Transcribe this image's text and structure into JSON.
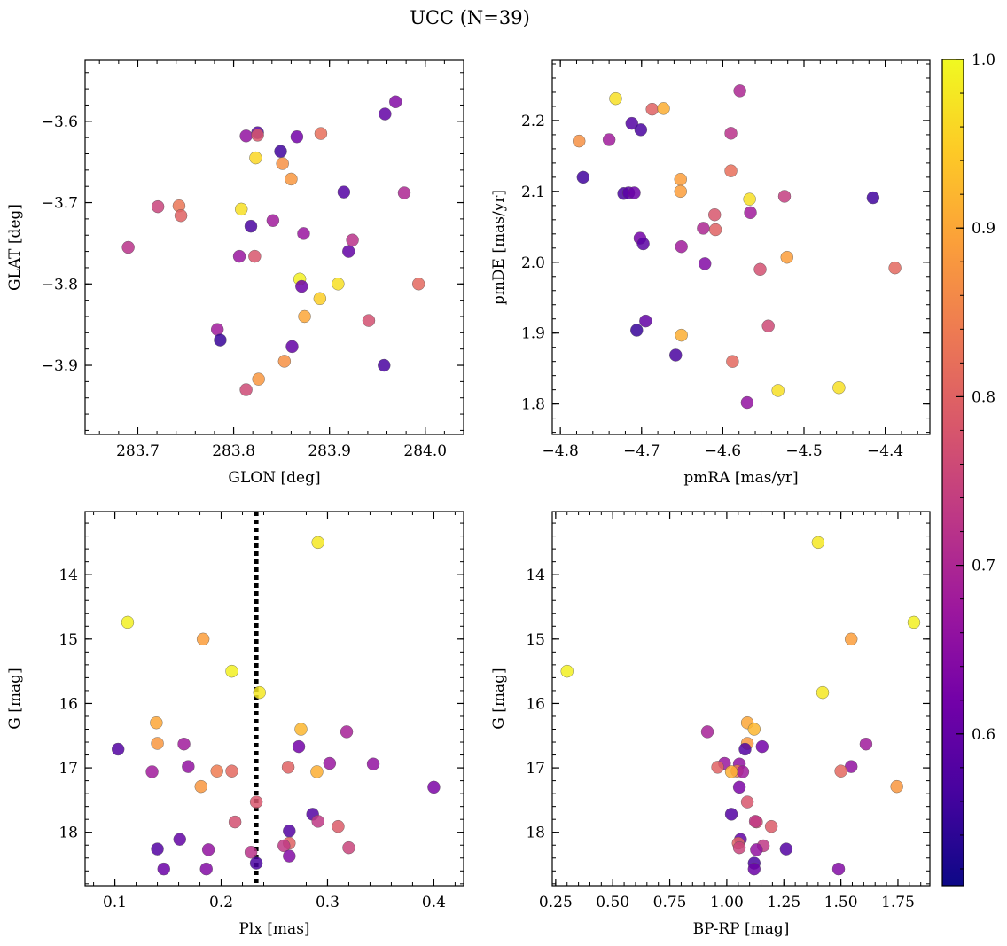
{
  "figure": {
    "title": "UCC (N=39)",
    "colormap": [
      "#0d0887",
      "#46039f",
      "#7201a8",
      "#9c179e",
      "#bd3786",
      "#d8576b",
      "#ed7953",
      "#fb9f3a",
      "#fdca26",
      "#f0f921"
    ],
    "colorbar": {
      "range": [
        0.51,
        1.0
      ],
      "ticks": [
        "0.6",
        "0.7",
        "0.8",
        "0.9",
        "1.0"
      ]
    }
  },
  "chart_data": [
    {
      "type": "scatter",
      "xlabel": "GLON [deg]",
      "ylabel": "GLAT [deg]",
      "xlim": [
        283.645,
        284.04
      ],
      "ylim": [
        -3.985,
        -3.525
      ],
      "xticks": [
        "283.7",
        "283.8",
        "283.9",
        "284.0"
      ],
      "yticks": [
        "-3.6",
        "-3.7",
        "-3.8",
        "-3.9"
      ],
      "points": [
        {
          "x": 283.69,
          "y": -3.755,
          "c": 0.72
        },
        {
          "x": 283.721,
          "y": -3.705,
          "c": 0.75
        },
        {
          "x": 283.743,
          "y": -3.704,
          "c": 0.83
        },
        {
          "x": 283.745,
          "y": -3.716,
          "c": 0.8
        },
        {
          "x": 283.783,
          "y": -3.856,
          "c": 0.68
        },
        {
          "x": 283.786,
          "y": -3.869,
          "c": 0.55
        },
        {
          "x": 283.806,
          "y": -3.766,
          "c": 0.67
        },
        {
          "x": 283.808,
          "y": -3.708,
          "c": 0.97
        },
        {
          "x": 283.813,
          "y": -3.618,
          "c": 0.66
        },
        {
          "x": 283.813,
          "y": -3.93,
          "c": 0.76
        },
        {
          "x": 283.818,
          "y": -3.729,
          "c": 0.57
        },
        {
          "x": 283.822,
          "y": -3.766,
          "c": 0.78
        },
        {
          "x": 283.823,
          "y": -3.645,
          "c": 0.96
        },
        {
          "x": 283.825,
          "y": -3.614,
          "c": 0.58
        },
        {
          "x": 283.825,
          "y": -3.617,
          "c": 0.78
        },
        {
          "x": 283.826,
          "y": -3.917,
          "c": 0.88
        },
        {
          "x": 283.841,
          "y": -3.722,
          "c": 0.68
        },
        {
          "x": 283.849,
          "y": -3.637,
          "c": 0.56
        },
        {
          "x": 283.851,
          "y": -3.652,
          "c": 0.87
        },
        {
          "x": 283.853,
          "y": -3.895,
          "c": 0.87
        },
        {
          "x": 283.86,
          "y": -3.671,
          "c": 0.88
        },
        {
          "x": 283.861,
          "y": -3.877,
          "c": 0.6
        },
        {
          "x": 283.866,
          "y": -3.619,
          "c": 0.62
        },
        {
          "x": 283.869,
          "y": -3.794,
          "c": 0.99
        },
        {
          "x": 283.871,
          "y": -3.803,
          "c": 0.61
        },
        {
          "x": 283.873,
          "y": -3.738,
          "c": 0.67
        },
        {
          "x": 283.874,
          "y": -3.84,
          "c": 0.9
        },
        {
          "x": 283.89,
          "y": -3.818,
          "c": 0.95
        },
        {
          "x": 283.891,
          "y": -3.615,
          "c": 0.82
        },
        {
          "x": 283.909,
          "y": -3.8,
          "c": 0.97
        },
        {
          "x": 283.915,
          "y": -3.687,
          "c": 0.58
        },
        {
          "x": 283.92,
          "y": -3.76,
          "c": 0.6
        },
        {
          "x": 283.924,
          "y": -3.746,
          "c": 0.72
        },
        {
          "x": 283.941,
          "y": -3.845,
          "c": 0.77
        },
        {
          "x": 283.957,
          "y": -3.9,
          "c": 0.57
        },
        {
          "x": 283.958,
          "y": -3.591,
          "c": 0.6
        },
        {
          "x": 283.969,
          "y": -3.576,
          "c": 0.64
        },
        {
          "x": 283.978,
          "y": -3.688,
          "c": 0.7
        },
        {
          "x": 283.993,
          "y": -3.8,
          "c": 0.81
        }
      ]
    },
    {
      "type": "scatter",
      "xlabel": "pmRA [mas/yr]",
      "ylabel": "pmDE [mas/yr]",
      "xlim": [
        -4.81,
        -4.345
      ],
      "ylim": [
        1.757,
        2.285
      ],
      "xticks": [
        "-4.8",
        "-4.7",
        "-4.6",
        "-4.5",
        "-4.4"
      ],
      "yticks": [
        "1.8",
        "1.9",
        "2.0",
        "2.1",
        "2.2"
      ],
      "points": [
        {
          "x": -4.777,
          "y": 2.171,
          "c": 0.87
        },
        {
          "x": -4.772,
          "y": 2.12,
          "c": 0.56
        },
        {
          "x": -4.74,
          "y": 2.173,
          "c": 0.68
        },
        {
          "x": -4.732,
          "y": 2.231,
          "c": 0.97
        },
        {
          "x": -4.722,
          "y": 2.097,
          "c": 0.57
        },
        {
          "x": -4.716,
          "y": 2.098,
          "c": 0.59
        },
        {
          "x": -4.712,
          "y": 2.196,
          "c": 0.58
        },
        {
          "x": -4.709,
          "y": 2.098,
          "c": 0.61
        },
        {
          "x": -4.706,
          "y": 1.904,
          "c": 0.55
        },
        {
          "x": -4.702,
          "y": 2.034,
          "c": 0.62
        },
        {
          "x": -4.701,
          "y": 2.187,
          "c": 0.57
        },
        {
          "x": -4.698,
          "y": 2.026,
          "c": 0.59
        },
        {
          "x": -4.695,
          "y": 1.917,
          "c": 0.6
        },
        {
          "x": -4.687,
          "y": 2.216,
          "c": 0.8
        },
        {
          "x": -4.673,
          "y": 2.217,
          "c": 0.91
        },
        {
          "x": -4.658,
          "y": 1.869,
          "c": 0.57
        },
        {
          "x": -4.652,
          "y": 2.117,
          "c": 0.89
        },
        {
          "x": -4.652,
          "y": 2.1,
          "c": 0.89
        },
        {
          "x": -4.651,
          "y": 2.022,
          "c": 0.68
        },
        {
          "x": -4.651,
          "y": 1.897,
          "c": 0.91
        },
        {
          "x": -4.624,
          "y": 2.048,
          "c": 0.7
        },
        {
          "x": -4.622,
          "y": 1.998,
          "c": 0.64
        },
        {
          "x": -4.61,
          "y": 2.067,
          "c": 0.78
        },
        {
          "x": -4.609,
          "y": 2.046,
          "c": 0.8
        },
        {
          "x": -4.59,
          "y": 2.182,
          "c": 0.72
        },
        {
          "x": -4.59,
          "y": 2.129,
          "c": 0.82
        },
        {
          "x": -4.588,
          "y": 1.86,
          "c": 0.81
        },
        {
          "x": -4.579,
          "y": 2.242,
          "c": 0.7
        },
        {
          "x": -4.57,
          "y": 1.802,
          "c": 0.66
        },
        {
          "x": -4.567,
          "y": 2.089,
          "c": 0.97
        },
        {
          "x": -4.566,
          "y": 2.07,
          "c": 0.68
        },
        {
          "x": -4.554,
          "y": 1.99,
          "c": 0.77
        },
        {
          "x": -4.544,
          "y": 1.91,
          "c": 0.76
        },
        {
          "x": -4.532,
          "y": 1.819,
          "c": 0.97
        },
        {
          "x": -4.524,
          "y": 2.093,
          "c": 0.74
        },
        {
          "x": -4.521,
          "y": 2.007,
          "c": 0.89
        },
        {
          "x": -4.457,
          "y": 1.823,
          "c": 0.97
        },
        {
          "x": -4.415,
          "y": 2.091,
          "c": 0.56
        },
        {
          "x": -4.388,
          "y": 1.992,
          "c": 0.81
        }
      ]
    },
    {
      "type": "scatter",
      "xlabel": "Plx [mas]",
      "ylabel": "G [mag]",
      "xlim": [
        0.072,
        0.428
      ],
      "ylim": [
        18.83,
        13.02
      ],
      "y_inverted": true,
      "xticks": [
        "0.1",
        "0.2",
        "0.3",
        "0.4"
      ],
      "yticks": [
        "14",
        "15",
        "16",
        "17",
        "18"
      ],
      "vline": {
        "x": 0.233,
        "style": "dotted"
      },
      "points": [
        {
          "x": 0.291,
          "y": 13.5,
          "c": 0.98
        },
        {
          "x": 0.112,
          "y": 14.74,
          "c": 0.99
        },
        {
          "x": 0.183,
          "y": 15.0,
          "c": 0.89
        },
        {
          "x": 0.21,
          "y": 15.5,
          "c": 0.99
        },
        {
          "x": 0.236,
          "y": 15.83,
          "c": 0.98
        },
        {
          "x": 0.139,
          "y": 16.3,
          "c": 0.9
        },
        {
          "x": 0.275,
          "y": 16.4,
          "c": 0.92
        },
        {
          "x": 0.318,
          "y": 16.44,
          "c": 0.69
        },
        {
          "x": 0.14,
          "y": 16.62,
          "c": 0.88
        },
        {
          "x": 0.165,
          "y": 16.63,
          "c": 0.68
        },
        {
          "x": 0.273,
          "y": 16.67,
          "c": 0.62
        },
        {
          "x": 0.103,
          "y": 16.71,
          "c": 0.58
        },
        {
          "x": 0.302,
          "y": 16.93,
          "c": 0.67
        },
        {
          "x": 0.343,
          "y": 16.94,
          "c": 0.66
        },
        {
          "x": 0.169,
          "y": 16.98,
          "c": 0.66
        },
        {
          "x": 0.263,
          "y": 16.99,
          "c": 0.8
        },
        {
          "x": 0.196,
          "y": 17.05,
          "c": 0.84
        },
        {
          "x": 0.21,
          "y": 17.05,
          "c": 0.81
        },
        {
          "x": 0.135,
          "y": 17.06,
          "c": 0.68
        },
        {
          "x": 0.29,
          "y": 17.06,
          "c": 0.91
        },
        {
          "x": 0.181,
          "y": 17.29,
          "c": 0.88
        },
        {
          "x": 0.4,
          "y": 17.3,
          "c": 0.63
        },
        {
          "x": 0.233,
          "y": 17.53,
          "c": 0.78
        },
        {
          "x": 0.286,
          "y": 17.72,
          "c": 0.58
        },
        {
          "x": 0.213,
          "y": 17.84,
          "c": 0.77
        },
        {
          "x": 0.291,
          "y": 17.83,
          "c": 0.73
        },
        {
          "x": 0.31,
          "y": 17.91,
          "c": 0.79
        },
        {
          "x": 0.264,
          "y": 17.98,
          "c": 0.58
        },
        {
          "x": 0.161,
          "y": 18.11,
          "c": 0.6
        },
        {
          "x": 0.264,
          "y": 18.17,
          "c": 0.8
        },
        {
          "x": 0.259,
          "y": 18.21,
          "c": 0.73
        },
        {
          "x": 0.32,
          "y": 18.24,
          "c": 0.75
        },
        {
          "x": 0.14,
          "y": 18.26,
          "c": 0.58
        },
        {
          "x": 0.188,
          "y": 18.27,
          "c": 0.66
        },
        {
          "x": 0.228,
          "y": 18.31,
          "c": 0.72
        },
        {
          "x": 0.264,
          "y": 18.37,
          "c": 0.64
        },
        {
          "x": 0.233,
          "y": 18.48,
          "c": 0.57
        },
        {
          "x": 0.146,
          "y": 18.57,
          "c": 0.61
        },
        {
          "x": 0.186,
          "y": 18.57,
          "c": 0.64
        }
      ]
    },
    {
      "type": "scatter",
      "xlabel": "BP-RP [mag]",
      "ylabel": "G [mag]",
      "xlim": [
        0.235,
        1.89
      ],
      "ylim": [
        18.83,
        13.02
      ],
      "y_inverted": true,
      "xticks": [
        "0.25",
        "0.50",
        "0.75",
        "1.00",
        "1.25",
        "1.50",
        "1.75"
      ],
      "yticks": [
        "14",
        "15",
        "16",
        "17",
        "18"
      ],
      "points": [
        {
          "x": 1.4,
          "y": 13.5,
          "c": 0.98
        },
        {
          "x": 1.82,
          "y": 14.74,
          "c": 0.99
        },
        {
          "x": 1.545,
          "y": 15.0,
          "c": 0.89
        },
        {
          "x": 0.3,
          "y": 15.5,
          "c": 0.99
        },
        {
          "x": 1.42,
          "y": 15.83,
          "c": 0.98
        },
        {
          "x": 1.09,
          "y": 16.3,
          "c": 0.9
        },
        {
          "x": 1.12,
          "y": 16.4,
          "c": 0.92
        },
        {
          "x": 0.915,
          "y": 16.44,
          "c": 0.69
        },
        {
          "x": 1.09,
          "y": 16.62,
          "c": 0.88
        },
        {
          "x": 1.61,
          "y": 16.63,
          "c": 0.68
        },
        {
          "x": 1.155,
          "y": 16.67,
          "c": 0.62
        },
        {
          "x": 1.08,
          "y": 16.71,
          "c": 0.58
        },
        {
          "x": 0.99,
          "y": 16.93,
          "c": 0.67
        },
        {
          "x": 1.055,
          "y": 16.94,
          "c": 0.66
        },
        {
          "x": 1.545,
          "y": 16.98,
          "c": 0.66
        },
        {
          "x": 0.96,
          "y": 16.99,
          "c": 0.8
        },
        {
          "x": 1.045,
          "y": 17.05,
          "c": 0.84
        },
        {
          "x": 1.5,
          "y": 17.05,
          "c": 0.81
        },
        {
          "x": 1.07,
          "y": 17.06,
          "c": 0.68
        },
        {
          "x": 1.02,
          "y": 17.06,
          "c": 0.91
        },
        {
          "x": 1.745,
          "y": 17.29,
          "c": 0.88
        },
        {
          "x": 1.055,
          "y": 17.3,
          "c": 0.63
        },
        {
          "x": 1.09,
          "y": 17.53,
          "c": 0.78
        },
        {
          "x": 1.02,
          "y": 17.72,
          "c": 0.58
        },
        {
          "x": 1.13,
          "y": 17.84,
          "c": 0.77
        },
        {
          "x": 1.125,
          "y": 17.83,
          "c": 0.73
        },
        {
          "x": 1.195,
          "y": 17.91,
          "c": 0.79
        },
        {
          "x": 1.06,
          "y": 18.11,
          "c": 0.6
        },
        {
          "x": 1.05,
          "y": 18.17,
          "c": 0.8
        },
        {
          "x": 1.16,
          "y": 18.21,
          "c": 0.73
        },
        {
          "x": 1.055,
          "y": 18.24,
          "c": 0.75
        },
        {
          "x": 1.26,
          "y": 18.26,
          "c": 0.58
        },
        {
          "x": 1.13,
          "y": 18.27,
          "c": 0.66
        },
        {
          "x": 1.12,
          "y": 18.48,
          "c": 0.57
        },
        {
          "x": 1.12,
          "y": 18.57,
          "c": 0.61
        },
        {
          "x": 1.49,
          "y": 18.57,
          "c": 0.64
        }
      ]
    }
  ]
}
